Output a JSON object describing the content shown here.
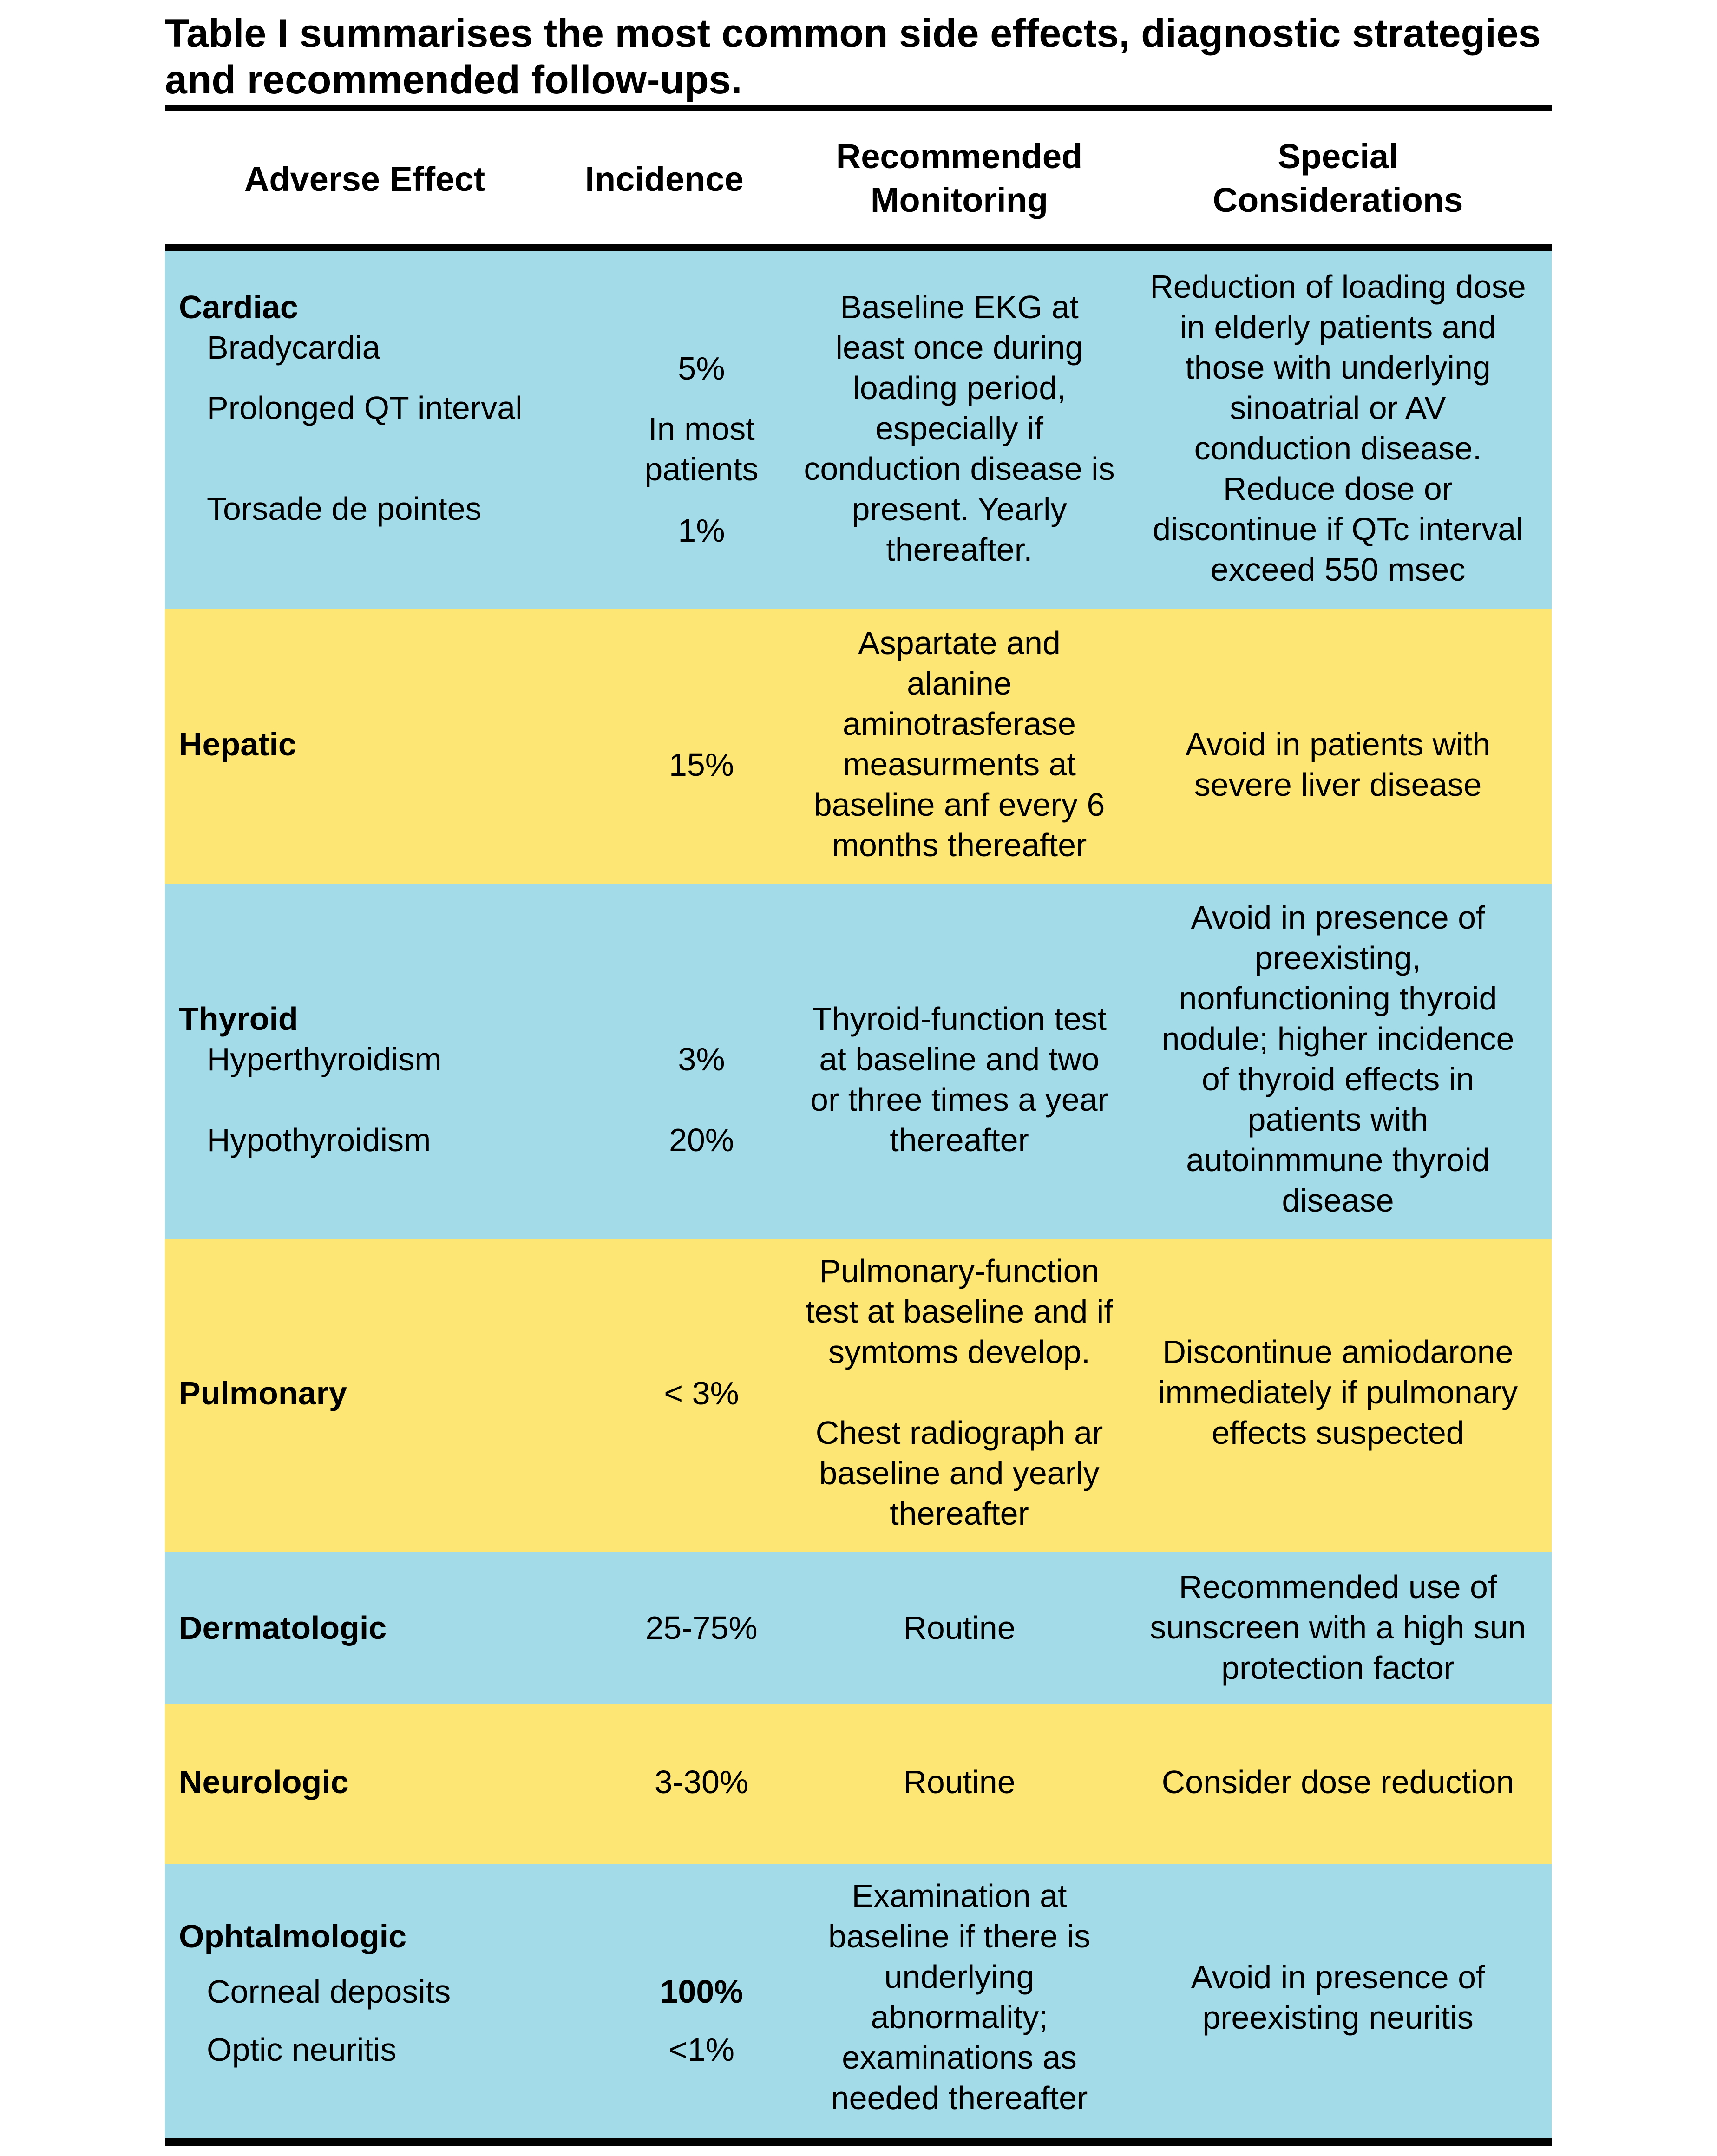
{
  "caption": "Table I summarises the most common side effects, diagnostic strategies and recommended follow-ups.",
  "headers": {
    "adverse_effect": "Adverse Effect",
    "incidence": "Incidence",
    "monitoring_l1": "Recommended",
    "monitoring_l2": "Monitoring",
    "special_l1": "Special",
    "special_l2": "Considerations"
  },
  "rows": {
    "cardiac": {
      "category": "Cardiac",
      "sub": [
        "Bradycardia",
        "Prolonged QT interval",
        "Torsade de pointes"
      ],
      "incidence": [
        "5%",
        "In most",
        "patients",
        "1%"
      ],
      "monitoring": [
        "Baseline EKG at",
        "least once during",
        "loading period,",
        "especially if",
        "conduction disease is",
        "present. Yearly",
        "thereafter."
      ],
      "special": [
        "Reduction of loading dose",
        "in elderly patients and",
        "those with underlying",
        "sinoatrial or AV",
        "conduction disease.",
        "Reduce dose or",
        "discontinue if QTc interval",
        "exceed 550 msec"
      ]
    },
    "hepatic": {
      "category": "Hepatic",
      "incidence": "15%",
      "monitoring": [
        "Aspartate and",
        "alanine",
        "aminotrasferase",
        "measurments at",
        "baseline anf every 6",
        "months thereafter"
      ],
      "special": [
        "Avoid in patients with",
        "severe liver disease"
      ]
    },
    "thyroid": {
      "category": "Thyroid",
      "sub": [
        "Hyperthyroidism",
        "Hypothyroidism"
      ],
      "incidence": [
        "3%",
        "20%"
      ],
      "monitoring": [
        "Thyroid-function test",
        "at baseline and two",
        "or three times a year",
        "thereafter"
      ],
      "special": [
        "Avoid in presence of",
        "preexisting,",
        "nonfunctioning thyroid",
        "nodule; higher incidence",
        "of thyroid effects in",
        "patients with",
        "autoinmmune thyroid",
        "disease"
      ]
    },
    "pulmonary": {
      "category": "Pulmonary",
      "incidence": "< 3%",
      "monitoring": [
        "Pulmonary-function",
        "test at baseline and if",
        "symtoms develop.",
        "",
        "Chest radiograph ar",
        "baseline and yearly",
        "thereafter"
      ],
      "special": [
        "Discontinue amiodarone",
        "immediately if pulmonary",
        "effects suspected"
      ]
    },
    "dermatologic": {
      "category": "Dermatologic",
      "incidence": "25-75%",
      "monitoring": "Routine",
      "special": [
        "Recommended use of",
        "sunscreen with a high sun",
        "protection factor"
      ]
    },
    "neurologic": {
      "category": "Neurologic",
      "incidence": "3-30%",
      "monitoring": "Routine",
      "special": [
        "Consider dose reduction"
      ]
    },
    "ophtalmologic": {
      "category": "Ophtalmologic",
      "sub": [
        "Corneal deposits",
        "Optic neuritis"
      ],
      "incidence": [
        "100%",
        "<1%"
      ],
      "monitoring": [
        "Examination at",
        "baseline if there is",
        "underlying",
        "abnormality;",
        "examinations as",
        "needed thereafter"
      ],
      "special": [
        "Avoid in presence of",
        "preexisting neuritis"
      ]
    }
  },
  "colors": {
    "blue_row": "#a4dbe8",
    "yellow_row": "#fde673"
  }
}
